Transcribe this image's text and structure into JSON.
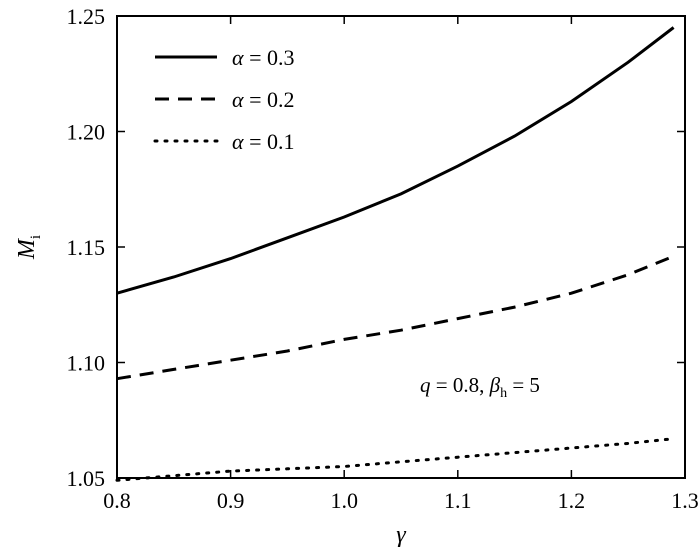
{
  "chart_data": {
    "type": "line",
    "xlabel": "γ",
    "ylabel": {
      "symbol": "M",
      "subscript": "i"
    },
    "xlim": [
      0.8,
      1.3
    ],
    "ylim": [
      1.05,
      1.25
    ],
    "xticks": [
      "0.8",
      "0.9",
      "1.0",
      "1.1",
      "1.2",
      "1.3"
    ],
    "yticks": [
      "1.05",
      "1.10",
      "1.15",
      "1.20",
      "1.25"
    ],
    "grid": false,
    "legend_position": "top-left",
    "series": [
      {
        "name": "α = 0.3",
        "style": "solid",
        "x": [
          0.8,
          0.85,
          0.9,
          0.95,
          1.0,
          1.05,
          1.1,
          1.15,
          1.2,
          1.25,
          1.29
        ],
        "y": [
          1.13,
          1.137,
          1.145,
          1.154,
          1.163,
          1.173,
          1.185,
          1.198,
          1.213,
          1.23,
          1.245
        ]
      },
      {
        "name": "α = 0.2",
        "style": "dashed",
        "x": [
          0.8,
          0.85,
          0.9,
          0.95,
          1.0,
          1.05,
          1.1,
          1.15,
          1.2,
          1.25,
          1.29
        ],
        "y": [
          1.093,
          1.097,
          1.101,
          1.105,
          1.11,
          1.114,
          1.119,
          1.124,
          1.13,
          1.138,
          1.146
        ]
      },
      {
        "name": "α = 0.1",
        "style": "dotted",
        "x": [
          0.8,
          0.85,
          0.9,
          0.95,
          1.0,
          1.05,
          1.1,
          1.15,
          1.2,
          1.25,
          1.29
        ],
        "y": [
          1.049,
          1.051,
          1.053,
          1.054,
          1.055,
          1.057,
          1.059,
          1.061,
          1.063,
          1.065,
          1.067
        ]
      }
    ],
    "annotation": {
      "q_text": "q",
      "q_rest": " = 0.8, ",
      "beta": "β",
      "beta_sub": "h",
      "beta_rest": " = 5"
    }
  }
}
